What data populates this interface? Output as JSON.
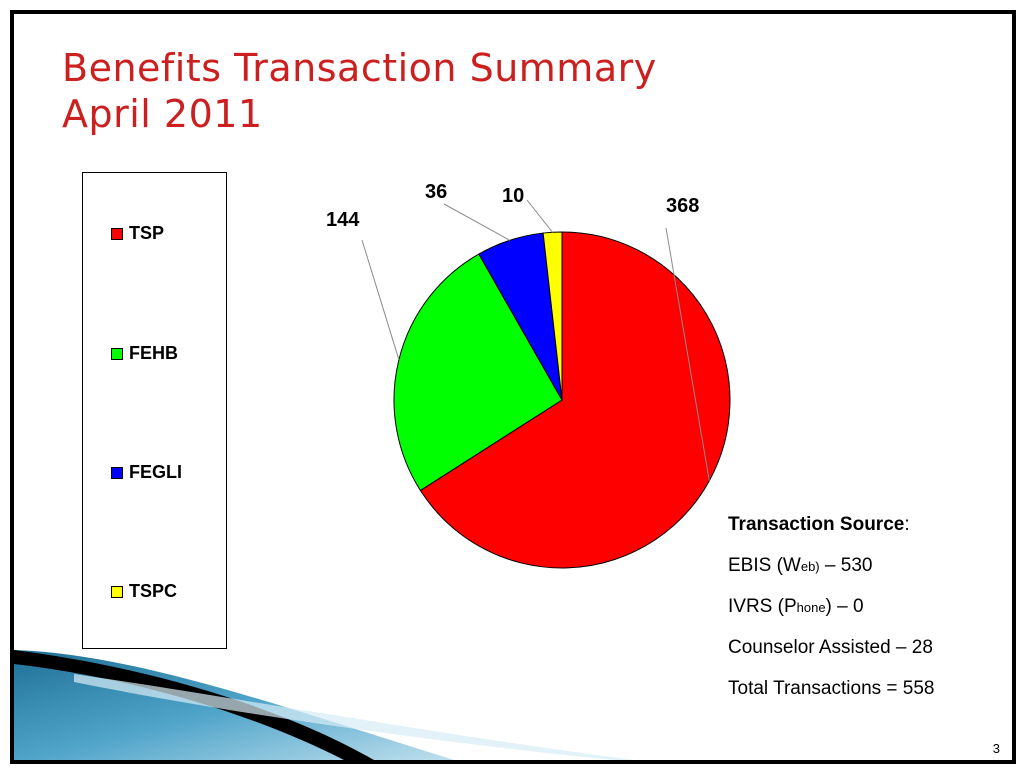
{
  "title": {
    "line1": "Benefits Transaction Summary",
    "line2": "April 2011",
    "color": "#cc1f1f"
  },
  "chart_data": {
    "type": "pie",
    "title": "",
    "categories": [
      "TSP",
      "FEHB",
      "FEGLI",
      "TSPC"
    ],
    "values": [
      368,
      144,
      36,
      10
    ],
    "colors": [
      "#ff0000",
      "#00ff00",
      "#0000ff",
      "#ffff00"
    ],
    "start_angle_deg": 0,
    "direction": "clockwise",
    "legend": {
      "position": "left",
      "items": [
        "TSP",
        "FEHB",
        "FEGLI",
        "TSPC"
      ]
    },
    "data_labels": [
      "368",
      "144",
      "36",
      "10"
    ]
  },
  "transaction_source": {
    "heading": "Transaction Source",
    "heading_suffix": ":",
    "ebis": {
      "prefix": "EBIS (W",
      "sub": "eb)",
      "suffix": " – 530"
    },
    "ivrs": {
      "prefix": "IVRS (P",
      "sub": "hone",
      "suffix": ") – 0"
    },
    "counselor": "Counselor Assisted – 28",
    "total": "Total Transactions = 558"
  },
  "page_number": "3"
}
